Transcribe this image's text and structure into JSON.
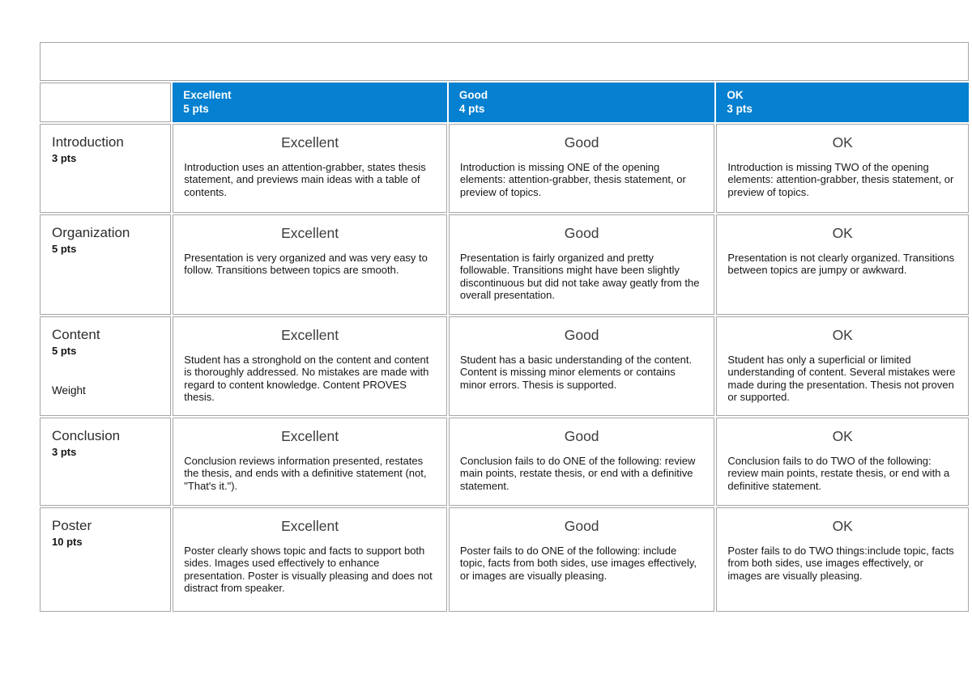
{
  "colors": {
    "header_bg": "#0680d0",
    "header_fg": "#ffffff",
    "border": "#a6a6a6"
  },
  "header": {
    "columns": [
      {
        "label": "Excellent",
        "pts": "5 pts"
      },
      {
        "label": "Good",
        "pts": "4 pts"
      },
      {
        "label": "OK",
        "pts": "3 pts"
      }
    ]
  },
  "rows": [
    {
      "criterion": "Introduction",
      "pts": "3 pts",
      "cells": [
        {
          "title": "Excellent",
          "desc": "Introduction uses an attention-grabber, states thesis statement, and previews main ideas with a table of contents."
        },
        {
          "title": "Good",
          "desc": "Introduction is missing ONE of the opening elements: attention-grabber, thesis statement, or preview of topics."
        },
        {
          "title": "OK",
          "desc": "Introduction is missing TWO of the opening elements: attention-grabber, thesis statement, or preview of topics."
        }
      ]
    },
    {
      "criterion": "Organization",
      "pts": "5 pts",
      "cells": [
        {
          "title": "Excellent",
          "desc": "Presentation is very organized and was very easy to follow. Transitions between topics are smooth."
        },
        {
          "title": "Good",
          "desc": "Presentation is fairly organized and pretty followable. Transitions might have been slightly discontinuous but did not take away geatly from the overall presentation."
        },
        {
          "title": "OK",
          "desc": "Presentation is not clearly organized. Transitions between topics are jumpy or awkward."
        }
      ]
    },
    {
      "criterion": "Content",
      "pts": "5 pts",
      "note": "Weight",
      "cells": [
        {
          "title": "Excellent",
          "desc": "Student has a stronghold on the content and content is thoroughly addressed. No mistakes are made with regard to content knowledge. Content PROVES thesis."
        },
        {
          "title": "Good",
          "desc": "Student has a basic understanding of the content. Content is missing minor elements or contains minor errors. Thesis is supported."
        },
        {
          "title": "OK",
          "desc": "Student has only a superficial or limited understanding of content. Several mistakes were made during the presentation. Thesis not proven or supported."
        }
      ]
    },
    {
      "criterion": "Conclusion",
      "pts": "3 pts",
      "cells": [
        {
          "title": "Excellent",
          "desc": "Conclusion reviews information presented, restates the thesis, and ends with a definitive statement (not, \"That's it.\")."
        },
        {
          "title": "Good",
          "desc": "Conclusion fails to do ONE of the following: review main points, restate thesis, or end with a definitive statement."
        },
        {
          "title": "OK",
          "desc": "Conclusion fails to do TWO of the following: review main points, restate thesis, or end with a definitive statement."
        }
      ]
    },
    {
      "criterion": "Poster",
      "pts": "10 pts",
      "cells": [
        {
          "title": "Excellent",
          "desc": "Poster clearly shows topic and facts to support both sides. Images used effectively to enhance presentation. Poster is visually pleasing and does not distract from speaker."
        },
        {
          "title": "Good",
          "desc": "Poster fails to do ONE of the following: include topic, facts from both sides, use images effectively, or images are visually pleasing."
        },
        {
          "title": "OK",
          "desc": "Poster fails to do TWO things:include topic, facts from both sides, use images effectively, or images are visually pleasing."
        }
      ]
    }
  ]
}
